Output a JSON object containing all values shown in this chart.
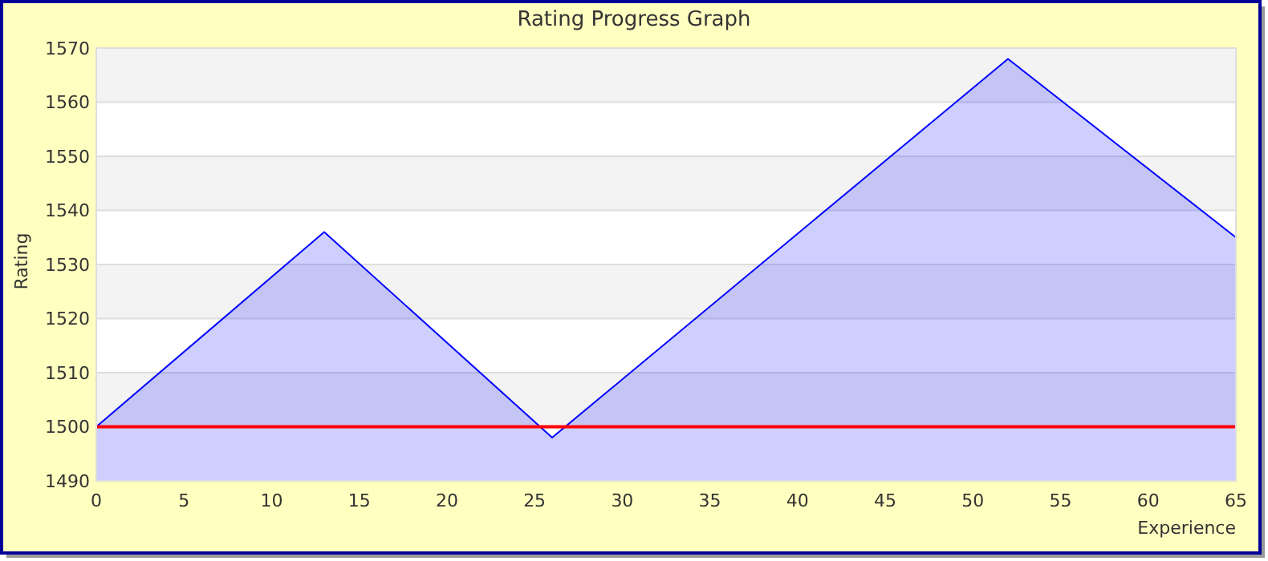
{
  "chart_data": {
    "type": "area",
    "title": "Rating Progress Graph",
    "xlabel": "Experience",
    "ylabel": "Rating",
    "x": [
      0,
      13,
      26,
      52,
      65
    ],
    "series": [
      {
        "color": "#0000ff",
        "values": [
          1500,
          1536,
          1498,
          1568,
          1535
        ]
      }
    ],
    "xlim": [
      0,
      65
    ],
    "xticks": [
      0,
      5,
      10,
      15,
      20,
      25,
      30,
      35,
      40,
      45,
      50,
      55,
      60,
      65
    ],
    "ylim": [
      1490,
      1570
    ],
    "yticks": [
      1490,
      1500,
      1510,
      1520,
      1530,
      1540,
      1550,
      1560,
      1570
    ],
    "grid": "y",
    "ref_lines": [
      {
        "axis": "y",
        "value": 1500,
        "color": "#ff0000"
      }
    ]
  }
}
